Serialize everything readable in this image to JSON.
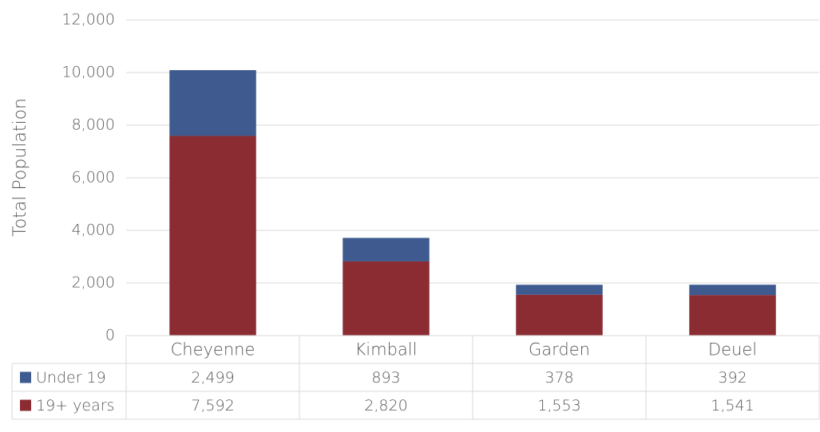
{
  "chart_data": {
    "type": "bar",
    "stacked": true,
    "y_label": "Total Population",
    "categories": [
      "Cheyenne",
      "Kimball",
      "Garden",
      "Deuel"
    ],
    "series": [
      {
        "name": "Under 19",
        "color": "#3e5a8f",
        "values": [
          2499,
          893,
          378,
          392
        ],
        "value_labels": [
          "2,499",
          "893",
          "378",
          "392"
        ]
      },
      {
        "name": "19+ years",
        "color": "#8b2c33",
        "values": [
          7592,
          2820,
          1553,
          1541
        ],
        "value_labels": [
          "7,592",
          "2,820",
          "1,553",
          "1,541"
        ]
      }
    ],
    "ylim": [
      0,
      12000
    ],
    "yticks": [
      0,
      {
        "value": 2000,
        "label": "2,000"
      },
      {
        "value": 4000,
        "label": "4,000"
      },
      {
        "value": 6000,
        "label": "6,000"
      },
      {
        "value": 8000,
        "label": "8,000"
      },
      {
        "value": 10000,
        "label": "10,000"
      },
      {
        "value": 12000,
        "label": "12,000"
      }
    ],
    "grid": true
  }
}
